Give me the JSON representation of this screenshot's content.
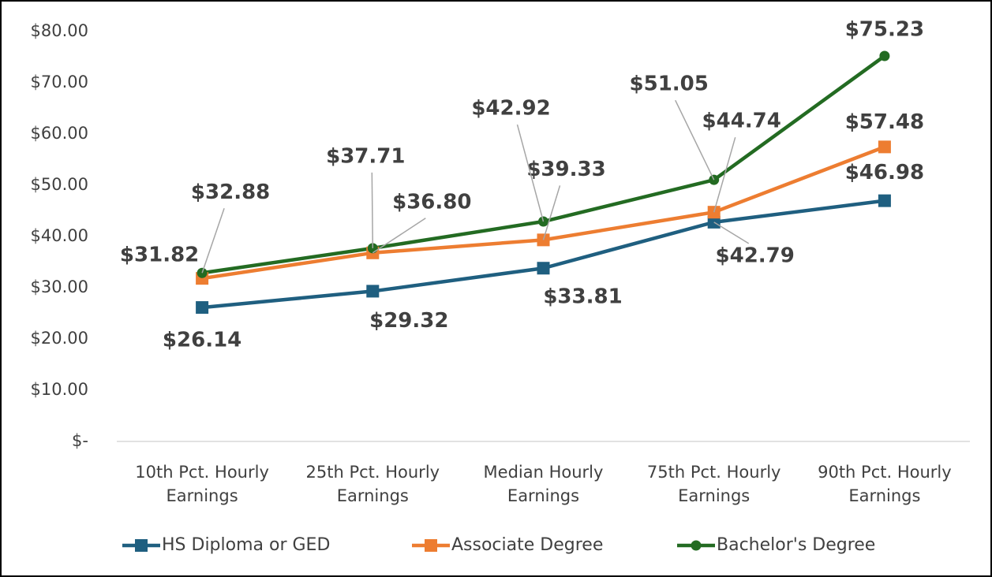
{
  "chart_data": {
    "type": "line",
    "categories": [
      "10th Pct. Hourly Earnings",
      "25th Pct. Hourly Earnings",
      "Median Hourly Earnings",
      "75th Pct. Hourly Earnings",
      "90th Pct. Hourly Earnings"
    ],
    "series": [
      {
        "name": "HS Diploma or GED",
        "color": "#1f5f80",
        "marker": "square",
        "values": [
          26.14,
          29.32,
          33.81,
          42.79,
          46.98
        ],
        "value_labels": [
          "$26.14",
          "$29.32",
          "$33.81",
          "$42.79",
          "$46.98"
        ]
      },
      {
        "name": "Associate Degree",
        "color": "#ed7d31",
        "marker": "square",
        "values": [
          31.82,
          36.8,
          39.33,
          44.74,
          57.48
        ],
        "value_labels": [
          "$31.82",
          "$36.80",
          "$39.33",
          "$44.74",
          "$57.48"
        ]
      },
      {
        "name": "Bachelor's Degree",
        "color": "#236b22",
        "marker": "circle",
        "values": [
          32.88,
          37.71,
          42.92,
          51.05,
          75.23
        ],
        "value_labels": [
          "$32.88",
          "$37.71",
          "$42.92",
          "$51.05",
          "$75.23"
        ]
      }
    ],
    "ylim": [
      0,
      80
    ],
    "yticks": [
      {
        "value": 0,
        "label": "$-"
      },
      {
        "value": 10,
        "label": "$10.00"
      },
      {
        "value": 20,
        "label": "$20.00"
      },
      {
        "value": 30,
        "label": "$30.00"
      },
      {
        "value": 40,
        "label": "$40.00"
      },
      {
        "value": 50,
        "label": "$50.00"
      },
      {
        "value": 60,
        "label": "$60.00"
      },
      {
        "value": 70,
        "label": "$70.00"
      },
      {
        "value": 80,
        "label": "$80.00"
      }
    ],
    "grid": false,
    "legend": "bottom"
  }
}
